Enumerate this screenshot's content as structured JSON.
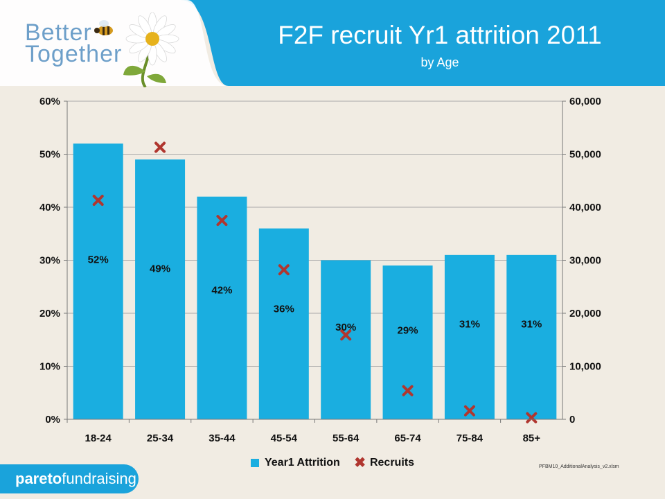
{
  "header": {
    "brand_line1": "Better",
    "brand_line2": "Together",
    "title": "F2F recruit Yr1 attrition 2011",
    "subtitle": "by Age"
  },
  "colors": {
    "header_blue": "#1aa3db",
    "bar": "#1aaee0",
    "marker": "#b0362f",
    "background": "#f1ece3"
  },
  "chart_data": {
    "type": "bar",
    "categories": [
      "18-24",
      "25-34",
      "35-44",
      "45-54",
      "55-64",
      "65-74",
      "75-84",
      "85+"
    ],
    "series": [
      {
        "name": "Year1 Attrition",
        "type": "bar",
        "axis": "left",
        "values": [
          0.52,
          0.49,
          0.42,
          0.36,
          0.3,
          0.29,
          0.31,
          0.31
        ],
        "labels": [
          "52%",
          "49%",
          "42%",
          "36%",
          "30%",
          "29%",
          "31%",
          "31%"
        ]
      },
      {
        "name": "Recruits",
        "type": "scatter",
        "axis": "right",
        "values": [
          41300,
          51300,
          37500,
          28200,
          15900,
          5400,
          1600,
          300
        ]
      }
    ],
    "y_left": {
      "ylim": [
        0,
        0.6
      ],
      "ticks": [
        "0%",
        "10%",
        "20%",
        "30%",
        "40%",
        "50%",
        "60%"
      ]
    },
    "y_right": {
      "ylim": [
        0,
        60000
      ],
      "ticks": [
        "0",
        "10,000",
        "20,000",
        "30,000",
        "40,000",
        "50,000",
        "60,000"
      ]
    },
    "grid": true,
    "legend": "bottom"
  },
  "legend": {
    "bar_label": "Year1 Attrition",
    "marker_label": "Recruits"
  },
  "footer": {
    "file_name": "PFBM10_AdditionalAnalysis_v2.xlsm",
    "logo_bold": "pareto",
    "logo_light": "fundraising"
  }
}
